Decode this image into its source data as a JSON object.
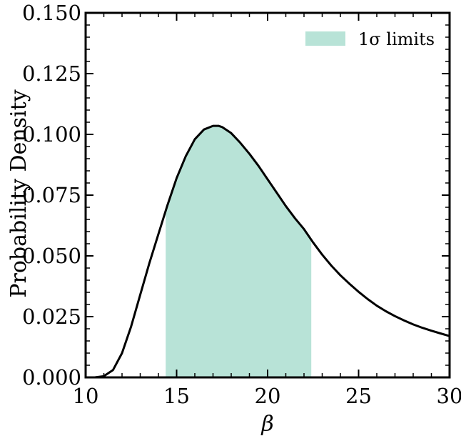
{
  "chart_data": {
    "type": "area",
    "xlabel": "β",
    "ylabel": "Probability Density",
    "xlim": [
      10,
      30
    ],
    "ylim": [
      0,
      0.15
    ],
    "x_ticks": [
      10,
      15,
      20,
      25,
      30
    ],
    "x_tick_labels": [
      "10",
      "15",
      "20",
      "25",
      "30"
    ],
    "y_ticks": [
      0,
      0.025,
      0.05,
      0.075,
      0.1,
      0.125,
      0.15
    ],
    "y_tick_labels": [
      "0.000",
      "0.025",
      "0.050",
      "0.075",
      "0.100",
      "0.125",
      "0.150"
    ],
    "grid": false,
    "legend_position": "top-right",
    "legend": {
      "label": "1σ limits",
      "color": "#b8e3d7"
    },
    "shaded_region": {
      "x_start": 14.4,
      "x_end": 22.4
    },
    "series": [
      {
        "color": "#000000",
        "x": [
          10.0,
          10.5,
          11.0,
          11.5,
          12.0,
          12.5,
          13.0,
          13.5,
          14.0,
          14.5,
          15.0,
          15.5,
          16.0,
          16.5,
          17.0,
          17.3,
          17.5,
          18.0,
          18.5,
          19.0,
          19.5,
          20.0,
          20.5,
          21.0,
          21.5,
          22.0,
          22.5,
          23.0,
          23.5,
          24.0,
          24.5,
          25.0,
          25.5,
          26.0,
          26.5,
          27.0,
          27.5,
          28.0,
          28.5,
          29.0,
          29.5,
          30.0
        ],
        "y": [
          0.0,
          0.0,
          0.0005,
          0.003,
          0.01,
          0.021,
          0.034,
          0.047,
          0.059,
          0.071,
          0.082,
          0.091,
          0.098,
          0.102,
          0.1035,
          0.1035,
          0.103,
          0.1005,
          0.0965,
          0.092,
          0.087,
          0.0815,
          0.076,
          0.0705,
          0.0655,
          0.061,
          0.0555,
          0.0505,
          0.046,
          0.042,
          0.0385,
          0.0352,
          0.0322,
          0.0295,
          0.0272,
          0.0252,
          0.0234,
          0.0218,
          0.0204,
          0.0192,
          0.0181,
          0.017
        ]
      }
    ]
  }
}
